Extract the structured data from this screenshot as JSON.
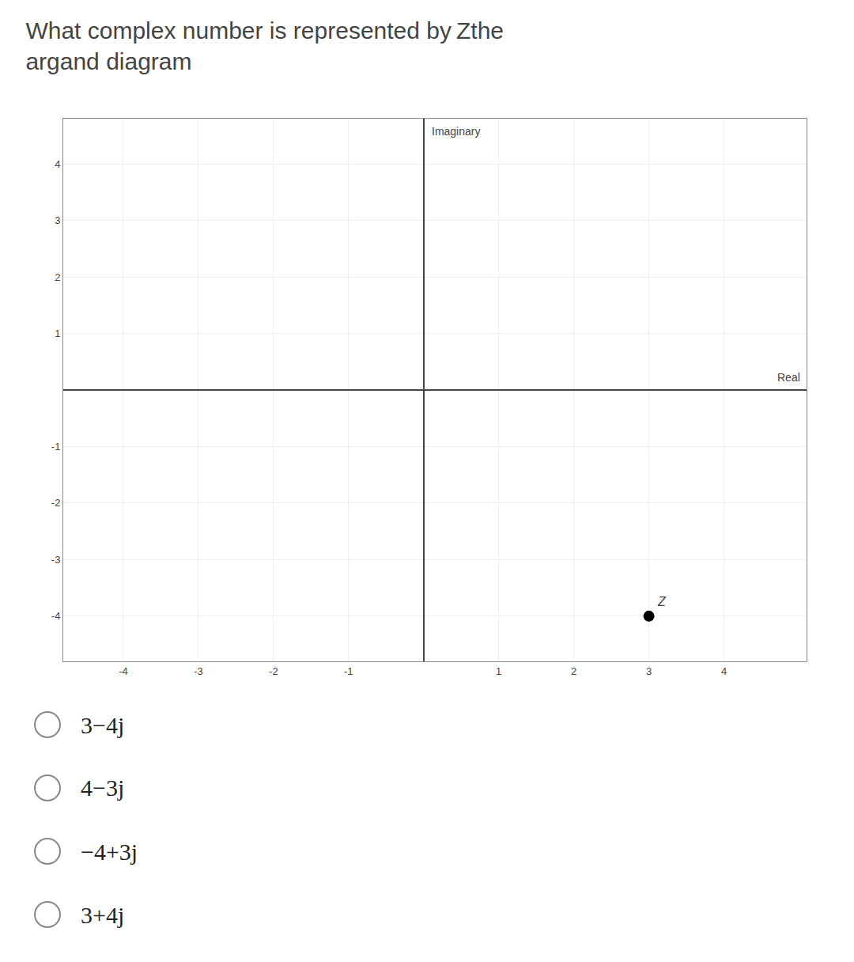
{
  "chart_data": {
    "type": "scatter",
    "title": "What complex number is represented by Zthe\nargand diagram",
    "xlabel": "Real",
    "ylabel": "Imaginary",
    "x": [
      3
    ],
    "values": [
      -4
    ],
    "color": "#000000",
    "annotations": [
      {
        "x": 3,
        "y": -4,
        "text": "Z"
      }
    ],
    "xlim": [
      -4.8,
      5.1
    ],
    "ylim": [
      -4.8,
      4.8
    ],
    "xticks": [
      -4,
      -3,
      -2,
      -1,
      1,
      2,
      3,
      4
    ],
    "yticks": [
      -4,
      -3,
      -2,
      -1,
      1,
      2,
      3,
      4
    ],
    "grid": true,
    "choices": [
      "3−4j",
      "4−3j",
      "−4+3j",
      "3+4j"
    ]
  }
}
